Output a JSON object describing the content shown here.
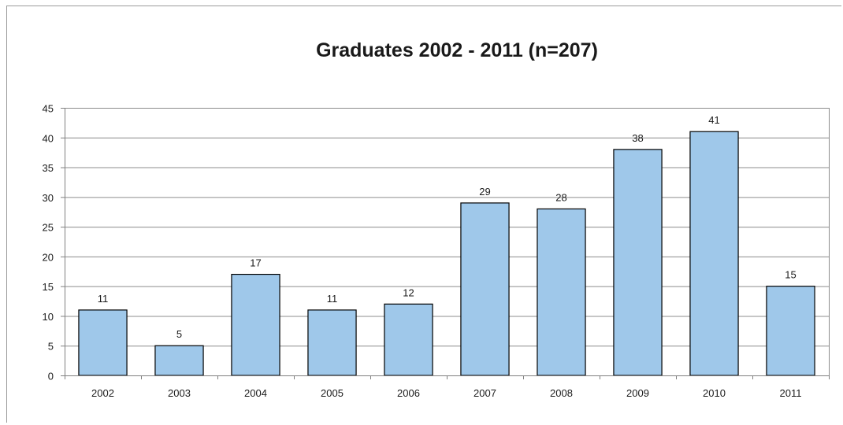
{
  "chart_data": {
    "type": "bar",
    "title": "Graduates 2002 - 2011 (n=207)",
    "xlabel": "",
    "ylabel": "",
    "categories": [
      "2002",
      "2003",
      "2004",
      "2005",
      "2006",
      "2007",
      "2008",
      "2009",
      "2010",
      "2011"
    ],
    "values": [
      11,
      5,
      17,
      11,
      12,
      29,
      28,
      38,
      41,
      15
    ],
    "ylim": [
      0,
      45
    ],
    "yticks": [
      0,
      5,
      10,
      15,
      20,
      25,
      30,
      35,
      40,
      45
    ],
    "grid": true,
    "legend": "none",
    "colors": {
      "bar_fill": "#9fc8ea",
      "bar_stroke": "#000000",
      "grid": "#8c8c8c",
      "axis": "#808080",
      "text": "#1a1a1a"
    }
  }
}
